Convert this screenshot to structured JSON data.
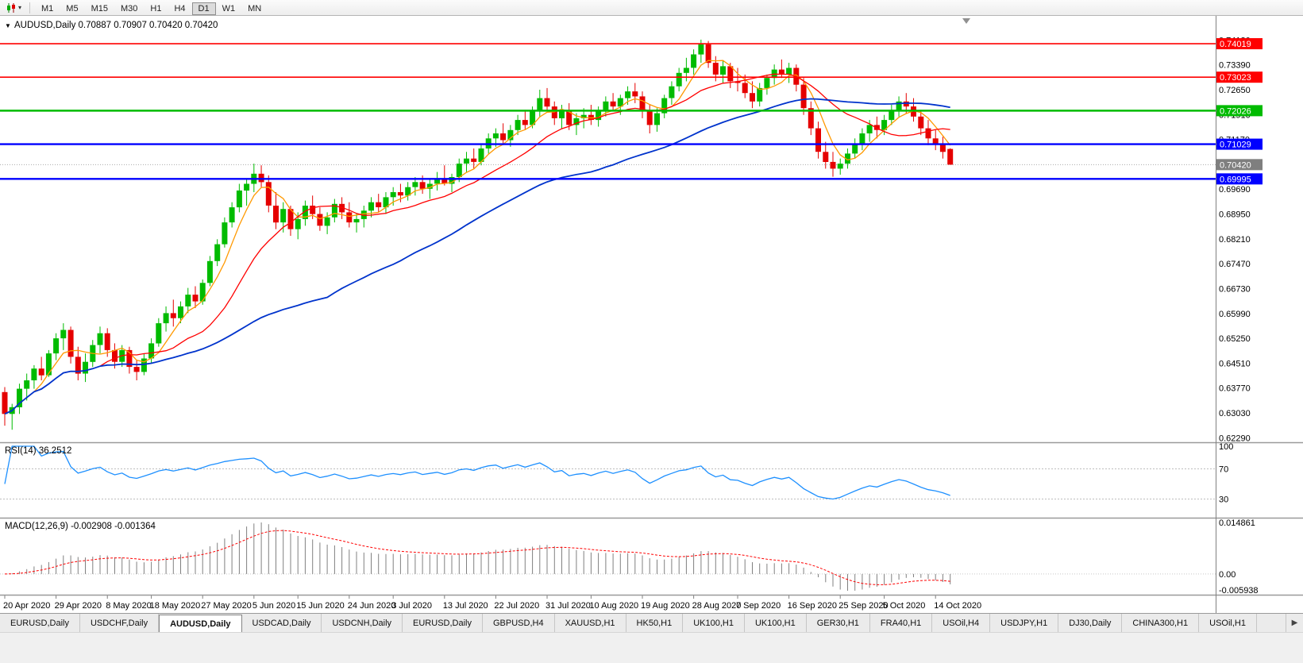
{
  "toolbar": {
    "timeframes": [
      "M1",
      "M5",
      "M15",
      "M30",
      "H1",
      "H4",
      "D1",
      "W1",
      "MN"
    ],
    "active_timeframe": "D1"
  },
  "icons": {
    "chart_type": "candlestick-chart",
    "dropdown_caret": "▾",
    "chart_menu": "▼",
    "tab_scroll_right": "▶"
  },
  "chart_data": {
    "type": "candlestick",
    "symbol": "AUDUSD",
    "timeframe": "Daily",
    "title": "AUDUSD,Daily",
    "ohlc_display": [
      "0.70887",
      "0.70907",
      "0.70420",
      "0.70420"
    ],
    "y_range": [
      0.6218,
      0.748
    ],
    "candle_colors": {
      "bull": "#00BB00",
      "bear": "#E50000"
    },
    "price_ticks": [
      "0.74130",
      "0.73390",
      "0.72650",
      "0.71910",
      "0.71170",
      "0.70430",
      "0.69690",
      "0.68950",
      "0.68210",
      "0.67470",
      "0.66730",
      "0.65990",
      "0.65250",
      "0.64510",
      "0.63770",
      "0.63030",
      "0.62290"
    ],
    "levels": [
      {
        "price": 0.74019,
        "label": "0.74019",
        "color": "#FF0000",
        "width": 1.6
      },
      {
        "price": 0.73023,
        "label": "0.73023",
        "color": "#FF0000",
        "width": 1.6
      },
      {
        "price": 0.72026,
        "label": "0.72026",
        "color": "#00BB00",
        "width": 2.4
      },
      {
        "price": 0.71029,
        "label": "0.71029",
        "color": "#0000FF",
        "width": 2.4
      },
      {
        "price": 0.69995,
        "label": "0.69995",
        "color": "#0000FF",
        "width": 2.4
      }
    ],
    "current_price": {
      "value": 0.7042,
      "label": "0.70420",
      "line_color": "#aaaaaa",
      "label_bg": "#7f7f7f"
    },
    "moving_averages": [
      {
        "name": "fast",
        "period": 5,
        "color": "#FF9900",
        "width": 1.3
      },
      {
        "name": "medium",
        "period": 14,
        "color": "#FF0000",
        "width": 1.3
      },
      {
        "name": "slow",
        "period": 45,
        "color": "#0033CC",
        "width": 1.8
      }
    ],
    "time_ticks": [
      {
        "bar": 0,
        "label": "20 Apr 2020"
      },
      {
        "bar": 7,
        "label": "29 Apr 2020"
      },
      {
        "bar": 14,
        "label": "8 May 2020"
      },
      {
        "bar": 20,
        "label": "18 May 2020"
      },
      {
        "bar": 27,
        "label": "27 May 2020"
      },
      {
        "bar": 34,
        "label": "5 Jun 2020"
      },
      {
        "bar": 40,
        "label": "15 Jun 2020"
      },
      {
        "bar": 47,
        "label": "24 Jun 2020"
      },
      {
        "bar": 53,
        "label": "3 Jul 2020"
      },
      {
        "bar": 60,
        "label": "13 Jul 2020"
      },
      {
        "bar": 67,
        "label": "22 Jul 2020"
      },
      {
        "bar": 74,
        "label": "31 Jul 2020"
      },
      {
        "bar": 80,
        "label": "10 Aug 2020"
      },
      {
        "bar": 87,
        "label": "19 Aug 2020"
      },
      {
        "bar": 94,
        "label": "28 Aug 2020"
      },
      {
        "bar": 100,
        "label": "7 Sep 2020"
      },
      {
        "bar": 107,
        "label": "16 Sep 2020"
      },
      {
        "bar": 114,
        "label": "25 Sep 2020"
      },
      {
        "bar": 120,
        "label": "5 Oct 2020"
      },
      {
        "bar": 127,
        "label": "14 Oct 2020"
      }
    ],
    "candles": [
      [
        0.6365,
        0.638,
        0.6265,
        0.63
      ],
      [
        0.63,
        0.633,
        0.6253,
        0.632
      ],
      [
        0.632,
        0.639,
        0.63,
        0.6375
      ],
      [
        0.6375,
        0.642,
        0.634,
        0.64
      ],
      [
        0.64,
        0.6445,
        0.6375,
        0.6435
      ],
      [
        0.6435,
        0.647,
        0.64,
        0.6415
      ],
      [
        0.6415,
        0.649,
        0.641,
        0.648
      ],
      [
        0.648,
        0.654,
        0.646,
        0.6525
      ],
      [
        0.6525,
        0.657,
        0.649,
        0.655
      ],
      [
        0.655,
        0.656,
        0.645,
        0.647
      ],
      [
        0.647,
        0.65,
        0.64,
        0.642
      ],
      [
        0.642,
        0.648,
        0.6395,
        0.6455
      ],
      [
        0.6455,
        0.652,
        0.644,
        0.6505
      ],
      [
        0.6505,
        0.656,
        0.648,
        0.654
      ],
      [
        0.654,
        0.6555,
        0.647,
        0.649
      ],
      [
        0.649,
        0.651,
        0.6435,
        0.6455
      ],
      [
        0.6455,
        0.6505,
        0.644,
        0.649
      ],
      [
        0.649,
        0.65,
        0.642,
        0.644
      ],
      [
        0.644,
        0.646,
        0.64,
        0.6425
      ],
      [
        0.6425,
        0.648,
        0.6415,
        0.6465
      ],
      [
        0.6465,
        0.6525,
        0.645,
        0.651
      ],
      [
        0.651,
        0.6585,
        0.65,
        0.657
      ],
      [
        0.657,
        0.662,
        0.6545,
        0.66
      ],
      [
        0.66,
        0.664,
        0.656,
        0.6585
      ],
      [
        0.6585,
        0.6635,
        0.657,
        0.662
      ],
      [
        0.662,
        0.6675,
        0.66,
        0.6655
      ],
      [
        0.6655,
        0.668,
        0.6615,
        0.6635
      ],
      [
        0.6635,
        0.67,
        0.6625,
        0.669
      ],
      [
        0.669,
        0.677,
        0.668,
        0.6755
      ],
      [
        0.6755,
        0.682,
        0.674,
        0.6805
      ],
      [
        0.6805,
        0.6885,
        0.6795,
        0.687
      ],
      [
        0.687,
        0.693,
        0.6855,
        0.6915
      ],
      [
        0.6915,
        0.6985,
        0.69,
        0.6965
      ],
      [
        0.6965,
        0.7,
        0.692,
        0.6985
      ],
      [
        0.6985,
        0.7045,
        0.696,
        0.7015
      ],
      [
        0.7015,
        0.704,
        0.6975,
        0.699
      ],
      [
        0.699,
        0.701,
        0.69,
        0.692
      ],
      [
        0.692,
        0.696,
        0.685,
        0.687
      ],
      [
        0.687,
        0.693,
        0.684,
        0.691
      ],
      [
        0.691,
        0.692,
        0.683,
        0.685
      ],
      [
        0.685,
        0.69,
        0.682,
        0.688
      ],
      [
        0.688,
        0.6935,
        0.686,
        0.692
      ],
      [
        0.692,
        0.695,
        0.688,
        0.6895
      ],
      [
        0.6895,
        0.6915,
        0.6845,
        0.686
      ],
      [
        0.686,
        0.69,
        0.6835,
        0.6885
      ],
      [
        0.6885,
        0.694,
        0.687,
        0.6925
      ],
      [
        0.6925,
        0.6945,
        0.688,
        0.69
      ],
      [
        0.69,
        0.693,
        0.6855,
        0.687
      ],
      [
        0.687,
        0.6895,
        0.684,
        0.688
      ],
      [
        0.688,
        0.692,
        0.6855,
        0.6905
      ],
      [
        0.6905,
        0.6945,
        0.6885,
        0.693
      ],
      [
        0.693,
        0.6955,
        0.69,
        0.6915
      ],
      [
        0.6915,
        0.696,
        0.6895,
        0.6945
      ],
      [
        0.6945,
        0.6975,
        0.692,
        0.696
      ],
      [
        0.696,
        0.6985,
        0.693,
        0.695
      ],
      [
        0.695,
        0.699,
        0.6935,
        0.6975
      ],
      [
        0.6975,
        0.7005,
        0.695,
        0.699
      ],
      [
        0.699,
        0.701,
        0.6955,
        0.697
      ],
      [
        0.697,
        0.7,
        0.694,
        0.6985
      ],
      [
        0.6985,
        0.702,
        0.6965,
        0.7
      ],
      [
        0.7,
        0.704,
        0.698,
        0.6985
      ],
      [
        0.6985,
        0.7015,
        0.696,
        0.7005
      ],
      [
        0.7005,
        0.706,
        0.699,
        0.7045
      ],
      [
        0.7045,
        0.708,
        0.702,
        0.706
      ],
      [
        0.706,
        0.709,
        0.703,
        0.705
      ],
      [
        0.705,
        0.7105,
        0.704,
        0.709
      ],
      [
        0.709,
        0.7135,
        0.7075,
        0.712
      ],
      [
        0.712,
        0.715,
        0.7095,
        0.7135
      ],
      [
        0.7135,
        0.7165,
        0.71,
        0.7115
      ],
      [
        0.7115,
        0.716,
        0.7095,
        0.7145
      ],
      [
        0.7145,
        0.719,
        0.713,
        0.7175
      ],
      [
        0.7175,
        0.7205,
        0.7145,
        0.716
      ],
      [
        0.716,
        0.7215,
        0.715,
        0.72
      ],
      [
        0.72,
        0.7265,
        0.7185,
        0.724
      ],
      [
        0.724,
        0.727,
        0.72,
        0.7215
      ],
      [
        0.7215,
        0.723,
        0.716,
        0.718
      ],
      [
        0.718,
        0.722,
        0.715,
        0.72
      ],
      [
        0.72,
        0.7225,
        0.7145,
        0.716
      ],
      [
        0.716,
        0.7195,
        0.713,
        0.718
      ],
      [
        0.718,
        0.721,
        0.715,
        0.719
      ],
      [
        0.719,
        0.722,
        0.716,
        0.7175
      ],
      [
        0.7175,
        0.7215,
        0.7155,
        0.7205
      ],
      [
        0.7205,
        0.7245,
        0.7185,
        0.723
      ],
      [
        0.723,
        0.7255,
        0.72,
        0.7215
      ],
      [
        0.7215,
        0.725,
        0.719,
        0.724
      ],
      [
        0.724,
        0.7275,
        0.722,
        0.726
      ],
      [
        0.726,
        0.7285,
        0.7225,
        0.7245
      ],
      [
        0.7245,
        0.726,
        0.718,
        0.72
      ],
      [
        0.72,
        0.722,
        0.7135,
        0.716
      ],
      [
        0.716,
        0.721,
        0.714,
        0.7195
      ],
      [
        0.7195,
        0.725,
        0.718,
        0.724
      ],
      [
        0.724,
        0.729,
        0.722,
        0.7275
      ],
      [
        0.7275,
        0.733,
        0.726,
        0.7315
      ],
      [
        0.7315,
        0.736,
        0.729,
        0.733
      ],
      [
        0.733,
        0.7385,
        0.731,
        0.737
      ],
      [
        0.737,
        0.7414,
        0.7345,
        0.74
      ],
      [
        0.74,
        0.741,
        0.733,
        0.7345
      ],
      [
        0.7345,
        0.7365,
        0.729,
        0.731
      ],
      [
        0.731,
        0.735,
        0.7285,
        0.7335
      ],
      [
        0.7335,
        0.7345,
        0.727,
        0.729
      ],
      [
        0.729,
        0.733,
        0.726,
        0.7285
      ],
      [
        0.7285,
        0.731,
        0.724,
        0.7255
      ],
      [
        0.7255,
        0.729,
        0.721,
        0.723
      ],
      [
        0.723,
        0.7285,
        0.7215,
        0.727
      ],
      [
        0.727,
        0.731,
        0.725,
        0.73
      ],
      [
        0.73,
        0.734,
        0.728,
        0.7325
      ],
      [
        0.7325,
        0.7355,
        0.73,
        0.731
      ],
      [
        0.731,
        0.7345,
        0.7285,
        0.733
      ],
      [
        0.733,
        0.734,
        0.726,
        0.728
      ],
      [
        0.728,
        0.73,
        0.719,
        0.721
      ],
      [
        0.721,
        0.723,
        0.713,
        0.715
      ],
      [
        0.715,
        0.717,
        0.706,
        0.708
      ],
      [
        0.708,
        0.711,
        0.703,
        0.705
      ],
      [
        0.705,
        0.708,
        0.7006,
        0.703
      ],
      [
        0.703,
        0.706,
        0.7012,
        0.7045
      ],
      [
        0.7045,
        0.709,
        0.703,
        0.7075
      ],
      [
        0.7075,
        0.712,
        0.706,
        0.7105
      ],
      [
        0.7105,
        0.715,
        0.7085,
        0.7135
      ],
      [
        0.7135,
        0.7175,
        0.711,
        0.716
      ],
      [
        0.716,
        0.7185,
        0.712,
        0.7145
      ],
      [
        0.7145,
        0.719,
        0.713,
        0.7175
      ],
      [
        0.7175,
        0.722,
        0.716,
        0.7205
      ],
      [
        0.7205,
        0.7245,
        0.7185,
        0.723
      ],
      [
        0.723,
        0.7255,
        0.7195,
        0.7215
      ],
      [
        0.7215,
        0.724,
        0.717,
        0.7185
      ],
      [
        0.7185,
        0.7205,
        0.713,
        0.715
      ],
      [
        0.715,
        0.7175,
        0.71,
        0.712
      ],
      [
        0.712,
        0.7145,
        0.7085,
        0.7105
      ],
      [
        0.7105,
        0.7125,
        0.706,
        0.708
      ],
      [
        0.70887,
        0.70907,
        0.7042,
        0.7042
      ]
    ],
    "indicators": [
      {
        "type": "rsi",
        "label": "RSI(14)",
        "value_display": "36.2512",
        "period": 14,
        "levels": [
          70,
          30
        ],
        "axis_labels": [
          "100",
          "70",
          "30"
        ],
        "line_color": "#1E90FF"
      },
      {
        "type": "macd",
        "label": "MACD(12,26,9)",
        "values_display": "-0.002908 -0.001364",
        "fast": 12,
        "slow": 26,
        "signal": 9,
        "axis_labels": [
          "0.014861",
          "0.00",
          "-0.005938"
        ],
        "histogram_color": "#808080",
        "signal_color": "#FF0000"
      }
    ]
  },
  "tabs": {
    "active_index": 2,
    "items": [
      "EURUSD,Daily",
      "USDCHF,Daily",
      "AUDUSD,Daily",
      "USDCAD,Daily",
      "USDCNH,Daily",
      "EURUSD,Daily",
      "GBPUSD,H4",
      "XAUUSD,H1",
      "HK50,H1",
      "UK100,H1",
      "UK100,H1",
      "GER30,H1",
      "FRA40,H1",
      "USOil,H4",
      "USDJPY,H1",
      "DJ30,Daily",
      "CHINA300,H1",
      "USOil,H1"
    ]
  }
}
